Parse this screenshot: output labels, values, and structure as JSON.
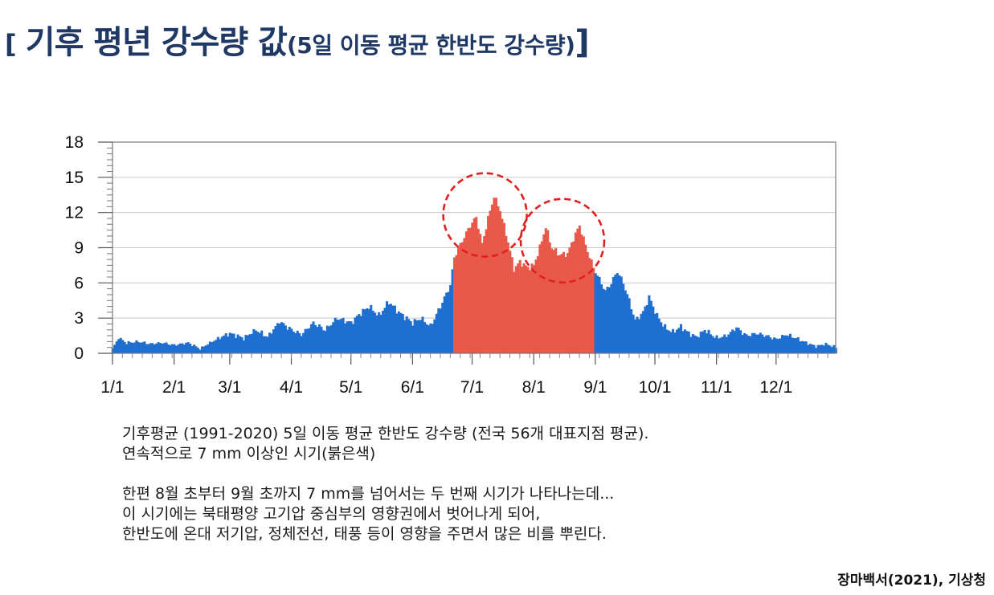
{
  "title": {
    "bracket_open": "[ ",
    "main": "기후 평년 강수량 값",
    "sub": "(5일 이동 평균 한반도 강수량)",
    "bracket_close": "]"
  },
  "chart_data": {
    "type": "area",
    "title": "",
    "xlabel": "",
    "ylabel": "",
    "x_ticks": [
      "1/1",
      "2/1",
      "3/1",
      "4/1",
      "5/1",
      "6/1",
      "7/1",
      "8/1",
      "9/1",
      "10/1",
      "11/1",
      "12/1"
    ],
    "ylim": [
      0,
      18
    ],
    "y_ticks": [
      0,
      3,
      6,
      9,
      12,
      15,
      18
    ],
    "grid": true,
    "threshold": 7,
    "colors": {
      "normal": "#1f6fd1",
      "highlight": "#e8594a",
      "circle": "#e02020"
    },
    "highlight_range": [
      "6/22",
      "8/31"
    ],
    "anchor_points": [
      [
        "1/1",
        0.4
      ],
      [
        "1/4",
        1.3
      ],
      [
        "1/8",
        0.9
      ],
      [
        "1/14",
        1.0
      ],
      [
        "1/20",
        0.8
      ],
      [
        "1/26",
        0.9
      ],
      [
        "2/1",
        0.7
      ],
      [
        "2/8",
        0.9
      ],
      [
        "2/14",
        0.4
      ],
      [
        "2/20",
        1.0
      ],
      [
        "2/26",
        1.5
      ],
      [
        "3/1",
        1.7
      ],
      [
        "3/8",
        1.3
      ],
      [
        "3/14",
        2.0
      ],
      [
        "3/20",
        1.4
      ],
      [
        "3/26",
        2.7
      ],
      [
        "4/1",
        2.0
      ],
      [
        "4/6",
        1.6
      ],
      [
        "4/12",
        2.6
      ],
      [
        "4/18",
        2.0
      ],
      [
        "4/24",
        3.0
      ],
      [
        "5/1",
        2.6
      ],
      [
        "5/5",
        3.3
      ],
      [
        "5/10",
        4.0
      ],
      [
        "5/15",
        3.2
      ],
      [
        "5/20",
        4.4
      ],
      [
        "5/25",
        3.5
      ],
      [
        "6/1",
        2.6
      ],
      [
        "6/5",
        3.0
      ],
      [
        "6/10",
        2.3
      ],
      [
        "6/15",
        4.0
      ],
      [
        "6/20",
        5.8
      ],
      [
        "6/22",
        8.2
      ],
      [
        "6/26",
        9.6
      ],
      [
        "6/30",
        10.9
      ],
      [
        "7/3",
        11.6
      ],
      [
        "7/6",
        9.3
      ],
      [
        "7/9",
        11.5
      ],
      [
        "7/12",
        13.4
      ],
      [
        "7/15",
        12.2
      ],
      [
        "7/19",
        9.5
      ],
      [
        "7/22",
        7.2
      ],
      [
        "7/25",
        7.8
      ],
      [
        "7/29",
        7.3
      ],
      [
        "8/1",
        7.5
      ],
      [
        "8/4",
        9.0
      ],
      [
        "8/7",
        10.8
      ],
      [
        "8/10",
        9.0
      ],
      [
        "8/14",
        8.4
      ],
      [
        "8/18",
        8.5
      ],
      [
        "8/21",
        9.8
      ],
      [
        "8/24",
        10.9
      ],
      [
        "8/27",
        9.2
      ],
      [
        "8/31",
        7.3
      ],
      [
        "9/3",
        6.3
      ],
      [
        "9/6",
        5.3
      ],
      [
        "9/9",
        6.0
      ],
      [
        "9/12",
        7.0
      ],
      [
        "9/15",
        6.0
      ],
      [
        "9/18",
        4.5
      ],
      [
        "9/21",
        2.8
      ],
      [
        "9/25",
        3.5
      ],
      [
        "9/28",
        4.8
      ],
      [
        "10/2",
        3.2
      ],
      [
        "10/6",
        2.2
      ],
      [
        "10/10",
        1.8
      ],
      [
        "10/14",
        2.3
      ],
      [
        "10/18",
        1.7
      ],
      [
        "10/22",
        1.4
      ],
      [
        "10/26",
        2.0
      ],
      [
        "11/1",
        1.3
      ],
      [
        "11/6",
        1.5
      ],
      [
        "11/11",
        2.2
      ],
      [
        "11/16",
        1.5
      ],
      [
        "11/21",
        1.7
      ],
      [
        "11/26",
        1.5
      ],
      [
        "12/1",
        1.2
      ],
      [
        "12/6",
        1.6
      ],
      [
        "12/11",
        1.3
      ],
      [
        "12/16",
        0.9
      ],
      [
        "12/21",
        0.6
      ],
      [
        "12/26",
        0.8
      ],
      [
        "12/31",
        0.5
      ]
    ]
  },
  "caption": {
    "line1": "기후평균 (1991-2020) 5일 이동 평균 한반도 강수량 (전국 56개 대표지점 평균).",
    "line2": "연속적으로 7 mm 이상인 시기(붉은색)",
    "line3": "한편 8월 초부터 9월 초까지 7 mm를 넘어서는 두 번째 시기가 나타나는데...",
    "line4": "이 시기에는 북태평양 고기압 중심부의 영향권에서 벗어나게 되어,",
    "line5": "한반도에 온대 저기압, 정체전선, 태풍 등이 영향을 주면서 많은 비를 뿌린다."
  },
  "source": "장마백서(2021), 기상청"
}
